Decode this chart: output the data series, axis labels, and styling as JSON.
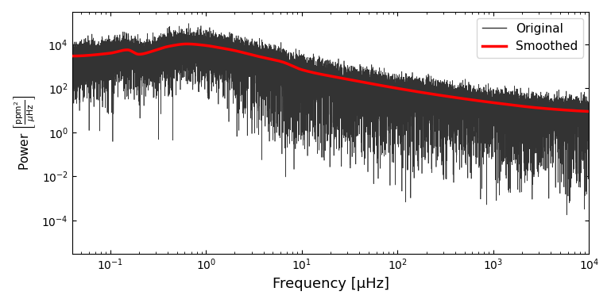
{
  "xlabel": "Frequency [μHz]",
  "xlim": [
    0.04,
    10000
  ],
  "ylim": [
    3e-06,
    300000.0
  ],
  "original_color": "#333333",
  "original_lw": 0.5,
  "smoothed_color": "red",
  "smoothed_lw": 2.5,
  "legend_labels": [
    "Original",
    "Smoothed"
  ],
  "figsize": [
    7.69,
    3.82
  ],
  "dpi": 100,
  "smooth_knots_logf": [
    -1.4,
    -1.0,
    -0.82,
    -0.7,
    -0.55,
    -0.4,
    -0.2,
    0.0,
    0.1,
    0.3,
    0.5,
    0.8,
    1.0,
    1.5,
    2.0,
    2.5,
    3.0,
    3.5,
    4.0
  ],
  "smooth_knots_logp": [
    3.47,
    3.6,
    3.75,
    3.55,
    3.7,
    3.9,
    4.02,
    3.95,
    3.88,
    3.72,
    3.5,
    3.2,
    2.85,
    2.4,
    2.0,
    1.65,
    1.35,
    1.1,
    0.95
  ]
}
